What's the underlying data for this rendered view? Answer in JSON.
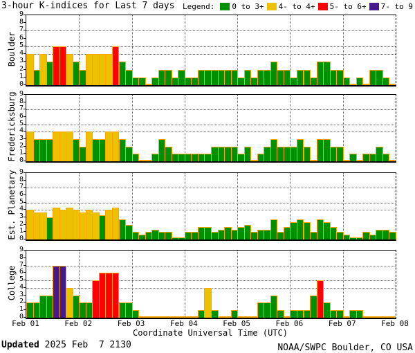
{
  "title": "3-hour K-indices for Last 7 days",
  "legend": {
    "label": "Legend:",
    "items": [
      {
        "label": "0 to 3+",
        "color": "#009000"
      },
      {
        "label": "4- to 4+",
        "color": "#EEC100"
      },
      {
        "label": "5- to 6+",
        "color": "#FF0000"
      },
      {
        "label": "7- to 9",
        "color": "#461A8C"
      }
    ]
  },
  "x_axis": {
    "title": "Coordinate Universal Time (UTC)"
  },
  "footer": {
    "updated_label": "Updated",
    "updated_value": " 2025 Feb  7 2130",
    "credit": "NOAA/SWPC Boulder, CO USA"
  },
  "chart_data": {
    "type": "bar",
    "title": "3-hour K-indices for Last 7 days",
    "hours_per_bar": 3,
    "bars_per_day": 8,
    "days": 7,
    "ylim": [
      0,
      9
    ],
    "ytick_labels": [
      "0",
      "1",
      "2",
      "3",
      "4",
      "5",
      "6",
      "7",
      "8",
      "9"
    ],
    "dotted_levels": [
      4,
      5,
      7
    ],
    "x_tick_labels": [
      "Feb 01",
      "Feb 02",
      "Feb 03",
      "Feb 04",
      "Feb 05",
      "Feb 06",
      "Feb 07",
      "Feb 08"
    ],
    "bar_outline_color": "#FFA500",
    "color_rules": [
      {
        "up_to": 3.5,
        "color": "#009000",
        "meaning": "K 0 to 3+"
      },
      {
        "up_to": 4.5,
        "color": "#EEC100",
        "meaning": "K 4- to 4+"
      },
      {
        "up_to": 6.5,
        "color": "#FF0000",
        "meaning": "K 5- to 6+"
      },
      {
        "up_to": 9.0,
        "color": "#461A8C",
        "meaning": "K 7- to 9"
      }
    ],
    "panels": [
      {
        "station": "Boulder",
        "values": [
          4,
          2,
          4,
          3,
          5,
          5,
          4,
          3,
          2,
          4,
          4,
          4,
          4,
          5,
          3,
          2,
          1,
          1,
          0,
          1,
          2,
          2,
          1,
          2,
          1,
          1,
          2,
          2,
          2,
          2,
          2,
          2,
          1,
          2,
          1,
          2,
          2,
          3,
          2,
          2,
          1,
          2,
          2,
          1,
          3,
          3,
          2,
          2,
          1,
          0,
          1,
          0,
          2,
          2,
          1,
          0
        ]
      },
      {
        "station": "Fredericksburg",
        "values": [
          4,
          3,
          3,
          3,
          4,
          4,
          4,
          3,
          2,
          4,
          3,
          3,
          4,
          4,
          3,
          2,
          1,
          0,
          0,
          1,
          3,
          2,
          1,
          1,
          1,
          1,
          1,
          1,
          2,
          2,
          2,
          2,
          1,
          2,
          0,
          1,
          2,
          3,
          2,
          2,
          2,
          3,
          2,
          0,
          3,
          3,
          2,
          2,
          0,
          1,
          0,
          1,
          1,
          2,
          1,
          0
        ]
      },
      {
        "station": "Est. Planetary",
        "values": [
          4,
          3.7,
          3.7,
          3,
          4.3,
          4,
          4.3,
          4,
          3.7,
          4,
          3.7,
          3.3,
          4,
          4.3,
          2.7,
          2,
          1,
          0.7,
          1,
          1.3,
          1,
          1,
          0.3,
          0.3,
          1,
          1,
          1.7,
          1.7,
          1,
          1.3,
          1.7,
          1.3,
          1.7,
          2,
          1,
          1.3,
          1.3,
          2.7,
          1,
          1.7,
          2.3,
          2.7,
          2.3,
          1,
          2.7,
          2.3,
          1.7,
          1,
          0.7,
          0.3,
          0.3,
          1,
          0.7,
          1.3,
          1.3,
          1
        ]
      },
      {
        "station": "College",
        "values": [
          2,
          2,
          3,
          3,
          7,
          7,
          4,
          3,
          2,
          2,
          5,
          6,
          6,
          6,
          2,
          2,
          1,
          0,
          0,
          0,
          0,
          0,
          0,
          0,
          0,
          0,
          1,
          4,
          1,
          0,
          0,
          1,
          0,
          0,
          0,
          2,
          2,
          3,
          1,
          0,
          1,
          1,
          1,
          3,
          5,
          2,
          1,
          1,
          0,
          1,
          1,
          0,
          0,
          0,
          0,
          0
        ]
      }
    ]
  }
}
